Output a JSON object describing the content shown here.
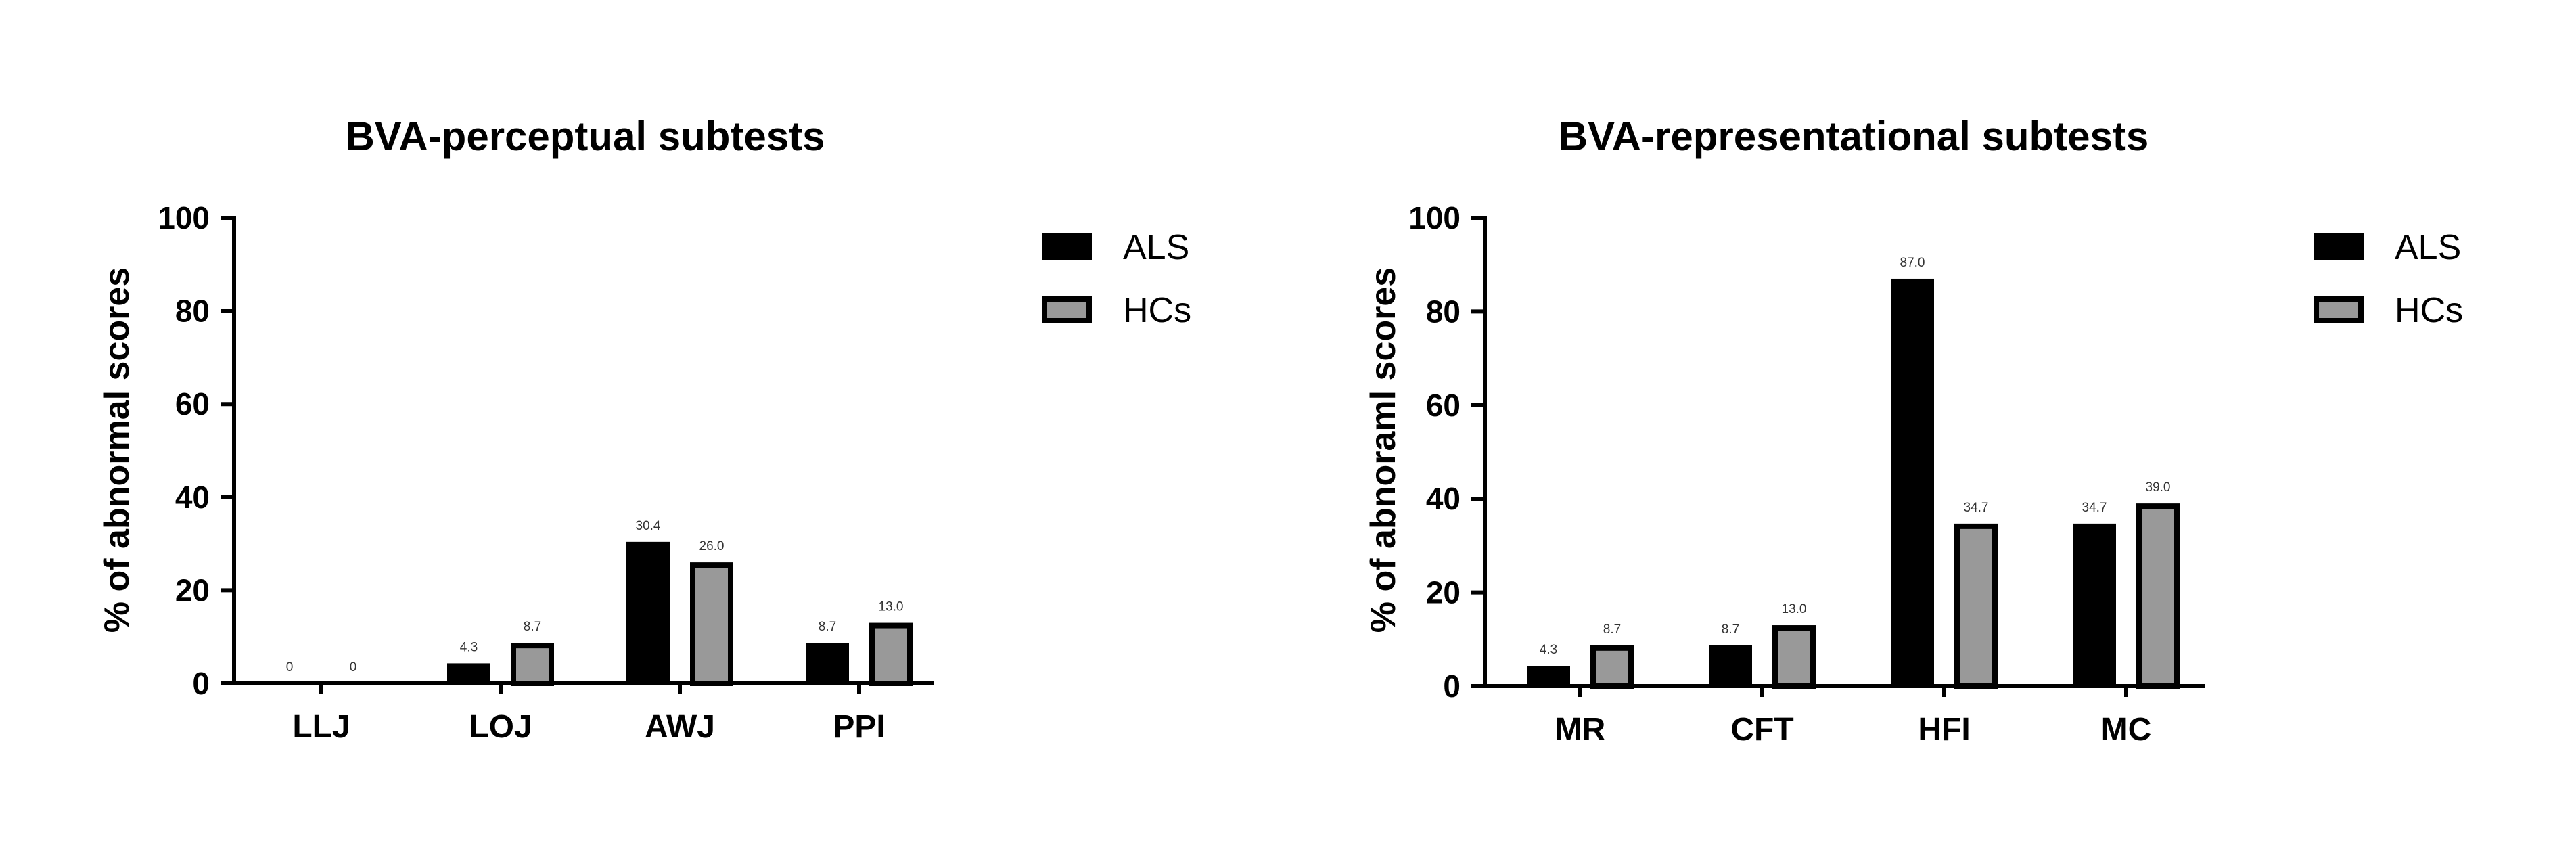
{
  "chart_data": [
    {
      "type": "bar",
      "title": "BVA-perceptual subtests",
      "xlabel": "",
      "ylabel": "% of abnormal scores",
      "ylim": [
        0,
        100
      ],
      "yticks": [
        "0",
        "20",
        "40",
        "60",
        "80",
        "100"
      ],
      "categories": [
        "LLJ",
        "LOJ",
        "AWJ",
        "PPI"
      ],
      "series": [
        {
          "name": "ALS",
          "values": [
            0,
            4.3,
            30.4,
            8.7
          ],
          "labels": [
            "0",
            "4.3",
            "30.4",
            "8.7"
          ],
          "color": "#000000"
        },
        {
          "name": "HCs",
          "values": [
            0,
            8.7,
            26.0,
            13.0
          ],
          "labels": [
            "0",
            "8.7",
            "26.0",
            "13.0"
          ],
          "color": "#999999"
        }
      ],
      "legend_position": "right"
    },
    {
      "type": "bar",
      "title": "BVA-representational subtests",
      "xlabel": "",
      "ylabel": "% of abnoraml scores",
      "ylim": [
        0,
        100
      ],
      "yticks": [
        "0",
        "20",
        "40",
        "60",
        "80",
        "100"
      ],
      "categories": [
        "MR",
        "CFT",
        "HFI",
        "MC"
      ],
      "series": [
        {
          "name": "ALS",
          "values": [
            4.3,
            8.7,
            87.0,
            34.7
          ],
          "labels": [
            "4.3",
            "8.7",
            "87.0",
            "34.7"
          ],
          "color": "#000000"
        },
        {
          "name": "HCs",
          "values": [
            8.7,
            13.0,
            34.7,
            39.0
          ],
          "labels": [
            "8.7",
            "13.0",
            "34.7",
            "39.0"
          ],
          "color": "#999999"
        }
      ],
      "legend_position": "right"
    }
  ]
}
